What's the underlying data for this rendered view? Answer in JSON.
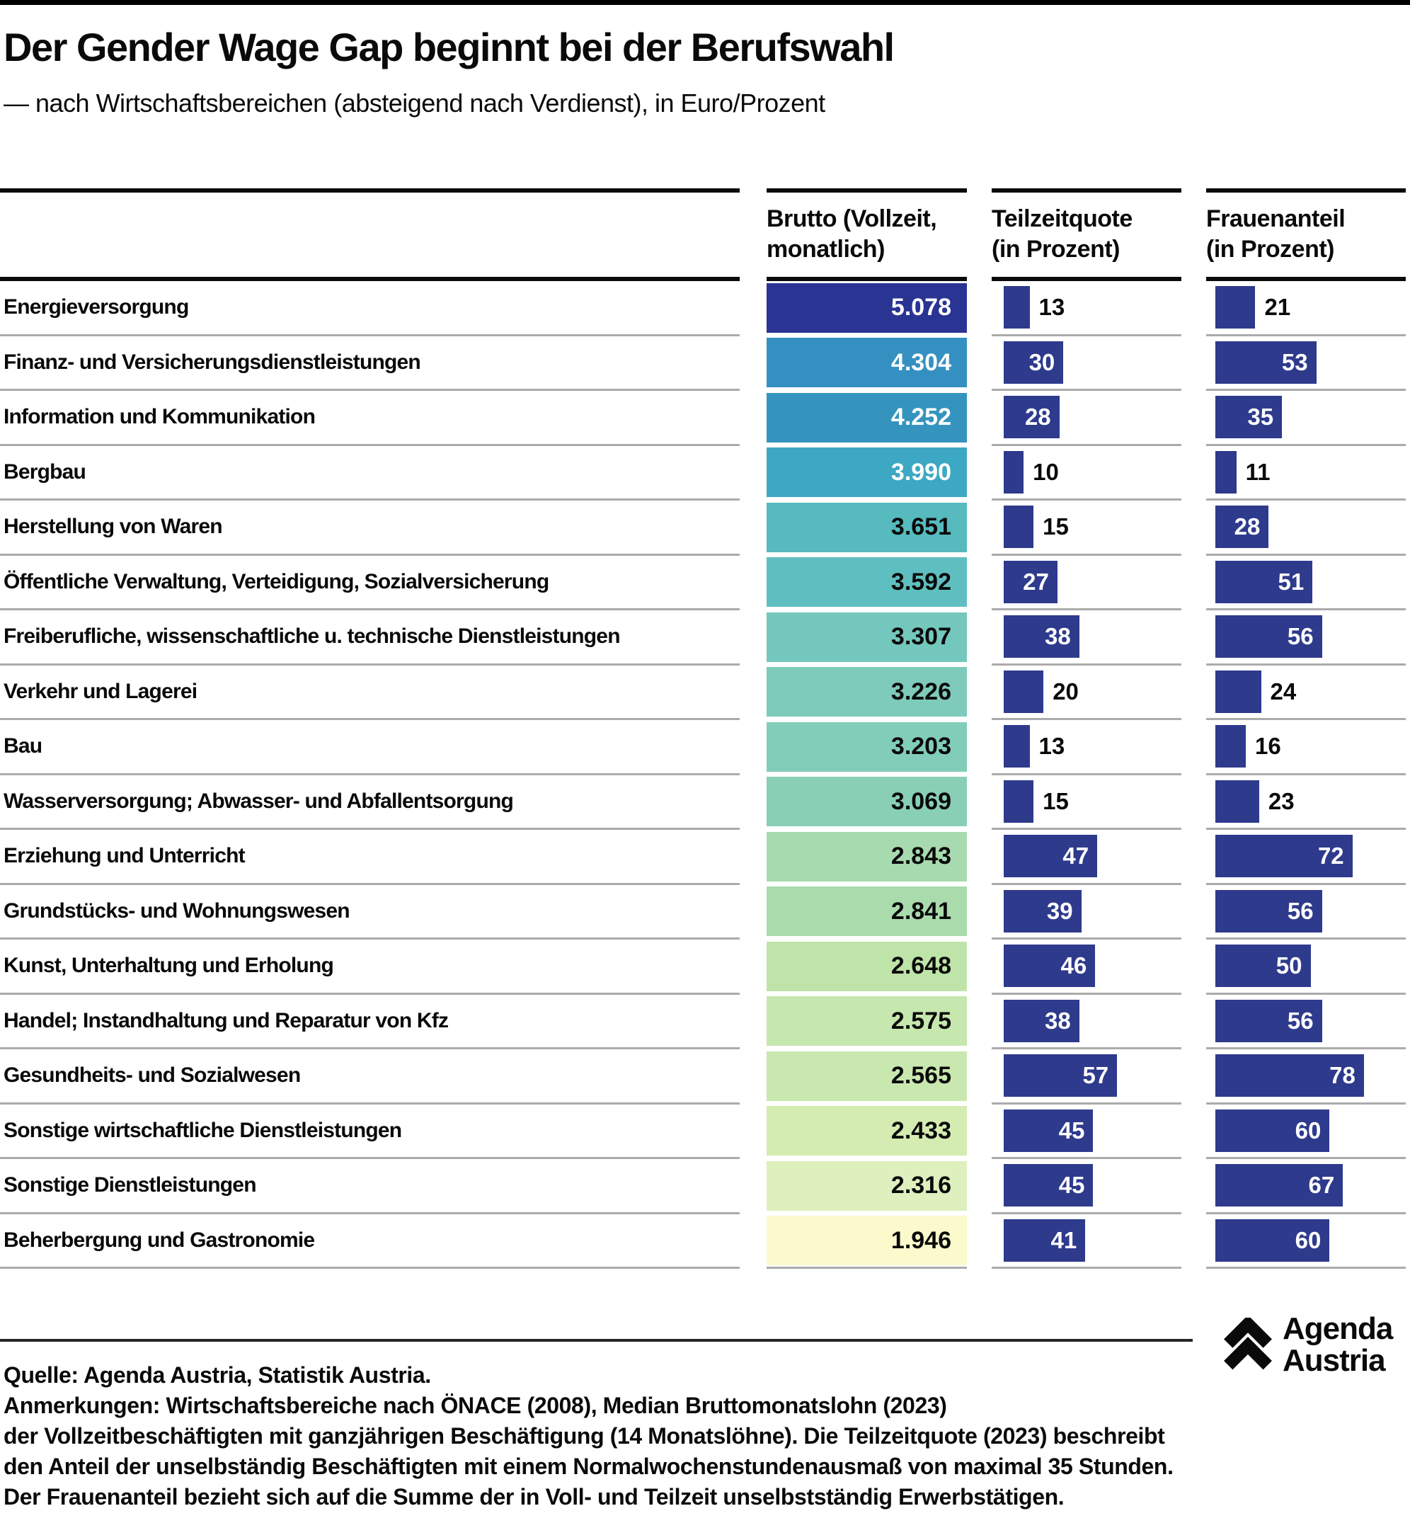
{
  "header": {
    "title": "Der Gender Wage Gap beginnt bei der Berufswahl",
    "subtitle": "— nach Wirtschaftsbereichen (absteigend nach Verdienst), in Euro/Prozent"
  },
  "columns": {
    "brutto": {
      "line1": "Brutto (Vollzeit,",
      "line2": "monatlich)"
    },
    "teilzeit": {
      "line1": "Teilzeitquote",
      "line2": "(in Prozent)"
    },
    "frauenanteil": {
      "line1": "Frauenanteil",
      "line2": "(in Prozent)"
    }
  },
  "rows": [
    {
      "label": "Energieversorgung",
      "brutto": "5.078",
      "brutto_color": "#2A3493",
      "brutto_text": "light",
      "teilzeit": 13,
      "frauenanteil": 21
    },
    {
      "label": "Finanz- und Versicherungsdienstleistungen",
      "brutto": "4.304",
      "brutto_color": "#3590C2",
      "brutto_text": "light",
      "teilzeit": 30,
      "frauenanteil": 53
    },
    {
      "label": "Information und Kommunikation",
      "brutto": "4.252",
      "brutto_color": "#3594BE",
      "brutto_text": "light",
      "teilzeit": 28,
      "frauenanteil": 35
    },
    {
      "label": "Bergbau",
      "brutto": "3.990",
      "brutto_color": "#3DA8C3",
      "brutto_text": "light",
      "teilzeit": 10,
      "frauenanteil": 11
    },
    {
      "label": "Herstellung von Waren",
      "brutto": "3.651",
      "brutto_color": "#56BABE",
      "brutto_text": "dark",
      "teilzeit": 15,
      "frauenanteil": 28
    },
    {
      "label": "Öffentliche Verwaltung, Verteidigung, Sozialversicherung",
      "brutto": "3.592",
      "brutto_color": "#5FBFC0",
      "brutto_text": "dark",
      "teilzeit": 27,
      "frauenanteil": 51
    },
    {
      "label": "Freiberufliche, wissenschaftliche u. technische Dienstleistungen",
      "brutto": "3.307",
      "brutto_color": "#74C7BD",
      "brutto_text": "dark",
      "teilzeit": 38,
      "frauenanteil": 56
    },
    {
      "label": "Verkehr und Lagerei",
      "brutto": "3.226",
      "brutto_color": "#7ECBBB",
      "brutto_text": "dark",
      "teilzeit": 20,
      "frauenanteil": 24
    },
    {
      "label": "Bau",
      "brutto": "3.203",
      "brutto_color": "#82CDB9",
      "brutto_text": "dark",
      "teilzeit": 13,
      "frauenanteil": 16
    },
    {
      "label": "Wasserversorgung; Abwasser- und Abfallentsorgung",
      "brutto": "3.069",
      "brutto_color": "#88CFB6",
      "brutto_text": "dark",
      "teilzeit": 15,
      "frauenanteil": 23
    },
    {
      "label": "Erziehung und Unterricht",
      "brutto": "2.843",
      "brutto_color": "#A8DAAF",
      "brutto_text": "dark",
      "teilzeit": 47,
      "frauenanteil": 72
    },
    {
      "label": "Grundstücks- und Wohnungswesen",
      "brutto": "2.841",
      "brutto_color": "#AADBAD",
      "brutto_text": "dark",
      "teilzeit": 39,
      "frauenanteil": 56
    },
    {
      "label": "Kunst, Unterhaltung und Erholung",
      "brutto": "2.648",
      "brutto_color": "#BFE4A9",
      "brutto_text": "dark",
      "teilzeit": 46,
      "frauenanteil": 50
    },
    {
      "label": "Handel; Instandhaltung und Reparatur von Kfz",
      "brutto": "2.575",
      "brutto_color": "#C6E7AE",
      "brutto_text": "dark",
      "teilzeit": 38,
      "frauenanteil": 56
    },
    {
      "label": "Gesundheits- und Sozialwesen",
      "brutto": "2.565",
      "brutto_color": "#C9E8B0",
      "brutto_text": "dark",
      "teilzeit": 57,
      "frauenanteil": 78
    },
    {
      "label": "Sonstige wirtschaftliche Dienstleistungen",
      "brutto": "2.433",
      "brutto_color": "#D4ECB1",
      "brutto_text": "dark",
      "teilzeit": 45,
      "frauenanteil": 60
    },
    {
      "label": "Sonstige Dienstleistungen",
      "brutto": "2.316",
      "brutto_color": "#DEF0BE",
      "brutto_text": "dark",
      "teilzeit": 45,
      "frauenanteil": 67
    },
    {
      "label": "Beherbergung und Gastronomie",
      "brutto": "1.946",
      "brutto_color": "#FBFACC",
      "brutto_text": "dark",
      "teilzeit": 41,
      "frauenanteil": 60
    }
  ],
  "style": {
    "pct_bar_color": "#2E3A8C",
    "separator_color": "#ABABAB",
    "rule_color": "#0A0A0A"
  },
  "footer": {
    "lines": [
      "Quelle: Agenda Austria, Statistik Austria.",
      "Anmerkungen: Wirtschaftsbereiche nach ÖNACE (2008), Median Bruttomonatslohn (2023)",
      "der Vollzeitbeschäftigten mit ganzjährigen Beschäftigung (14 Monatslöhne). Die Teilzeitquote (2023) beschreibt",
      "den Anteil der unselbständig Beschäftigten mit einem Normalwochenstundenausmaß von maximal 35 Stunden.",
      "Der Frauenanteil bezieht sich auf die Summe der in Voll- und Teilzeit unselbstständig Erwerbstätigen."
    ],
    "logo": {
      "line1": "Agenda",
      "line2": "Austria"
    }
  },
  "chart_data": {
    "type": "bar",
    "title": "Der Gender Wage Gap beginnt bei der Berufswahl",
    "subtitle": "— nach Wirtschaftsbereichen (absteigend nach Verdienst), in Euro/Prozent",
    "categories": [
      "Energieversorgung",
      "Finanz- und Versicherungsdienstleistungen",
      "Information und Kommunikation",
      "Bergbau",
      "Herstellung von Waren",
      "Öffentliche Verwaltung, Verteidigung, Sozialversicherung",
      "Freiberufliche, wissenschaftliche u. technische Dienstleistungen",
      "Verkehr und Lagerei",
      "Bau",
      "Wasserversorgung; Abwasser- und Abfallentsorgung",
      "Erziehung und Unterricht",
      "Grundstücks- und Wohnungswesen",
      "Kunst, Unterhaltung und Erholung",
      "Handel; Instandhaltung und Reparatur von Kfz",
      "Gesundheits- und Sozialwesen",
      "Sonstige wirtschaftliche Dienstleistungen",
      "Sonstige Dienstleistungen",
      "Beherbergung und Gastronomie"
    ],
    "series": [
      {
        "name": "Brutto (Vollzeit, monatlich)",
        "unit": "Euro",
        "values": [
          5078,
          4304,
          4252,
          3990,
          3651,
          3592,
          3307,
          3226,
          3203,
          3069,
          2843,
          2841,
          2648,
          2575,
          2565,
          2433,
          2316,
          1946
        ]
      },
      {
        "name": "Teilzeitquote (in Prozent)",
        "unit": "%",
        "values": [
          13,
          30,
          28,
          10,
          15,
          27,
          38,
          20,
          13,
          15,
          47,
          39,
          46,
          38,
          57,
          45,
          45,
          41
        ]
      },
      {
        "name": "Frauenanteil (in Prozent)",
        "unit": "%",
        "values": [
          21,
          53,
          35,
          11,
          28,
          51,
          56,
          24,
          16,
          23,
          72,
          56,
          50,
          56,
          78,
          60,
          67,
          60
        ]
      }
    ],
    "layout": {
      "orientation": "horizontal",
      "pct_axis_range": [
        0,
        100
      ],
      "grid": false,
      "legend": "column-headers",
      "sorted_by": "Brutto descending"
    }
  }
}
